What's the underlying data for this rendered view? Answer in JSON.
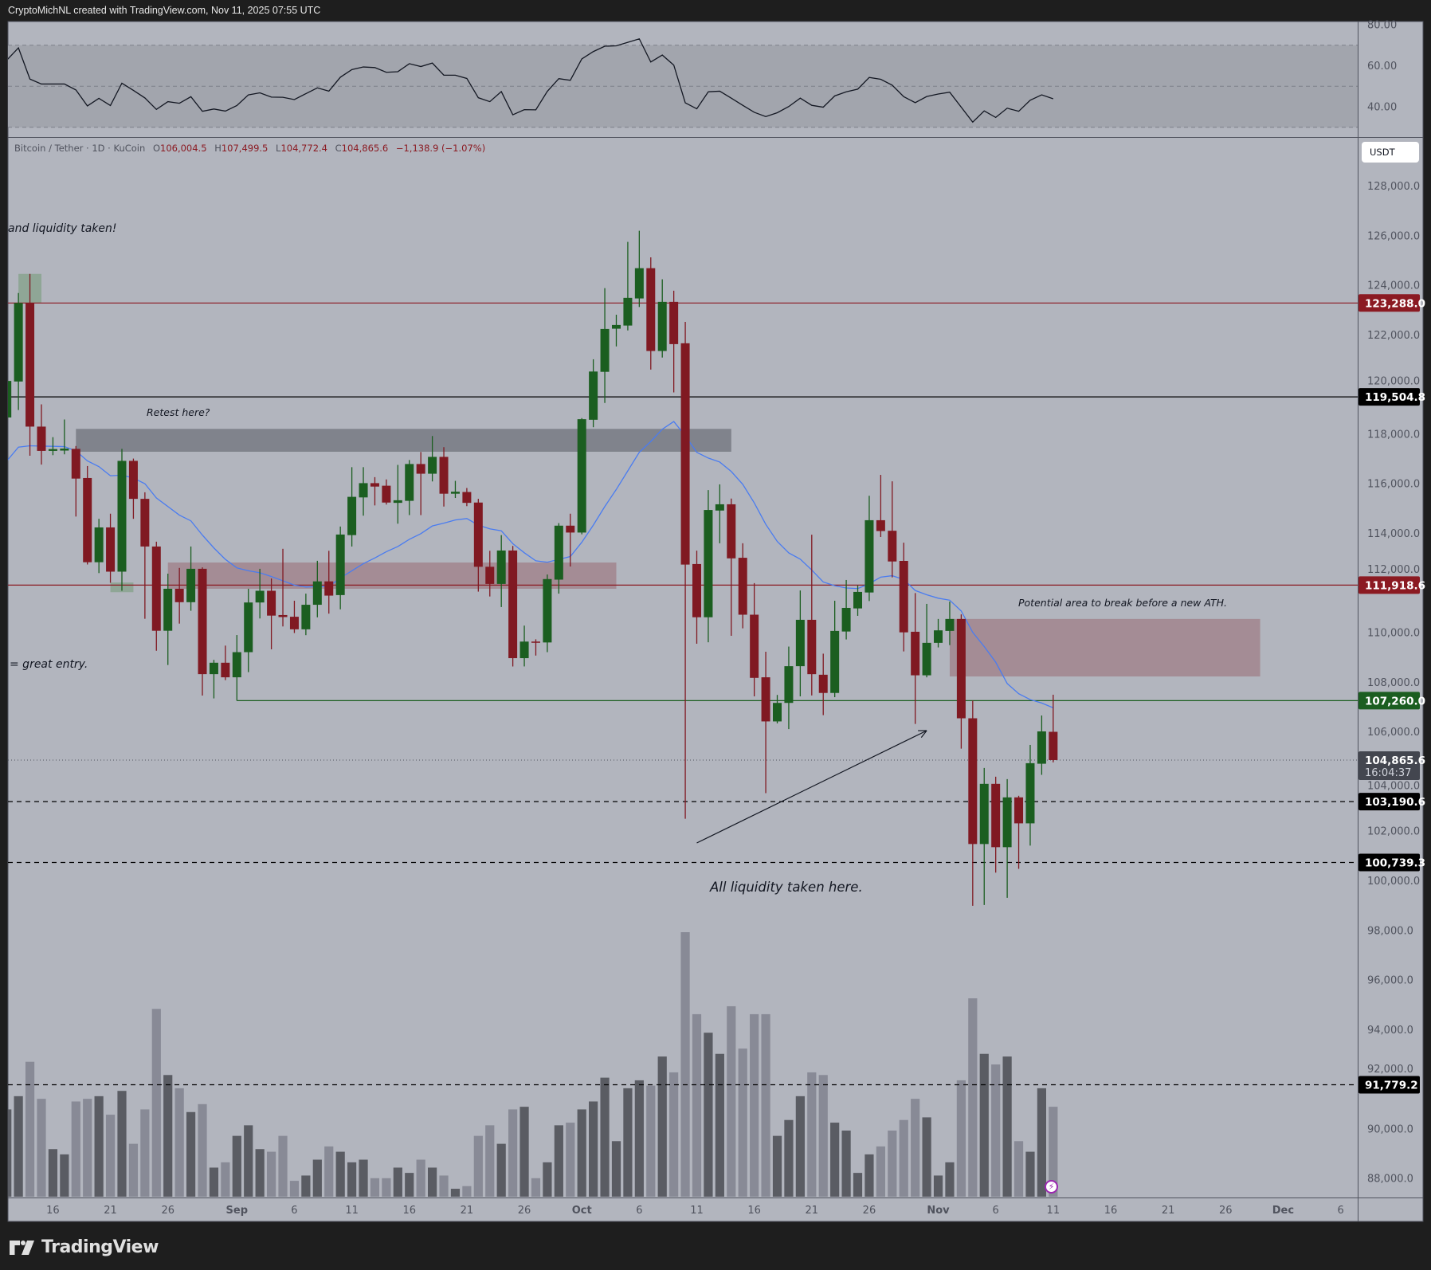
{
  "header": {
    "attribution": "CryptoMichNL created with TradingView.com, Nov 11, 2025 07:55 UTC"
  },
  "legend": {
    "symbol": "Bitcoin / Tether · 1D · KuCoin",
    "open_label": "O",
    "open": "106,004.5",
    "high_label": "H",
    "high": "107,499.5",
    "low_label": "L",
    "low": "104,772.4",
    "close_label": "C",
    "close": "104,865.6",
    "change": "−1,138.9 (−1.07%)"
  },
  "currency_button": "USDT",
  "branding": "TradingView",
  "annotations": {
    "liquidity_taken_top": "and liquidity taken!",
    "retest": "Retest here?",
    "great_entry": "= great entry.",
    "potential_area": "Potential area to break before a new ATH.",
    "all_liquidity": "All liquidity taken here."
  },
  "colors": {
    "up": "#1b5e20",
    "down": "#801922",
    "ma": "#4a7cf0",
    "volume_up": "#5a5c63",
    "volume_down": "#888a96",
    "pane_bg": "#b2b5be",
    "line_red": "#8b1a22",
    "line_green": "#1b5e20"
  },
  "chart_data": {
    "type": "candlestick",
    "timeframe": "1D",
    "price_axis": {
      "ticks": [
        "128,000.0",
        "126,000.0",
        "124,000.0",
        "122,000.0",
        "120,000.0",
        "118,000.0",
        "116,000.0",
        "114,000.0",
        "112,000.0",
        "110,000.0",
        "108,000.0",
        "106,000.0",
        "104,000.0",
        "102,000.0",
        "100,000.0",
        "98,000.0",
        "96,000.0",
        "94,000.0",
        "92,000.0",
        "90,000.0",
        "88,000.0"
      ]
    },
    "rsi_axis": {
      "ticks": [
        "80.00",
        "60.00",
        "40.00"
      ],
      "band": [
        30,
        70
      ],
      "mid": 50
    },
    "time_axis": [
      {
        "label": "16",
        "date": "2025-08-16"
      },
      {
        "label": "21",
        "date": "2025-08-21"
      },
      {
        "label": "26",
        "date": "2025-08-26"
      },
      {
        "label": "Sep",
        "date": "2025-09-01",
        "bold": true
      },
      {
        "label": "6",
        "date": "2025-09-06"
      },
      {
        "label": "11",
        "date": "2025-09-11"
      },
      {
        "label": "16",
        "date": "2025-09-16"
      },
      {
        "label": "21",
        "date": "2025-09-21"
      },
      {
        "label": "26",
        "date": "2025-09-26"
      },
      {
        "label": "Oct",
        "date": "2025-10-01",
        "bold": true
      },
      {
        "label": "6",
        "date": "2025-10-06"
      },
      {
        "label": "11",
        "date": "2025-10-11"
      },
      {
        "label": "16",
        "date": "2025-10-16"
      },
      {
        "label": "21",
        "date": "2025-10-21"
      },
      {
        "label": "26",
        "date": "2025-10-26"
      },
      {
        "label": "Nov",
        "date": "2025-11-01",
        "bold": true
      },
      {
        "label": "6",
        "date": "2025-11-06"
      },
      {
        "label": "11",
        "date": "2025-11-11"
      },
      {
        "label": "16",
        "date": "2025-11-16"
      },
      {
        "label": "21",
        "date": "2025-11-21"
      },
      {
        "label": "26",
        "date": "2025-11-26"
      },
      {
        "label": "Dec",
        "date": "2025-12-01",
        "bold": true
      },
      {
        "label": "6",
        "date": "2025-12-06"
      }
    ],
    "columns": [
      "date",
      "open",
      "high",
      "low",
      "close",
      "volume_relative",
      "rsi",
      "ma"
    ],
    "candles": [
      [
        "2025-08-12",
        118674,
        120500,
        118300,
        120147,
        33,
        62.8,
        116925
      ],
      [
        "2025-08-13",
        120124,
        123690,
        118973,
        123288,
        38,
        68.7,
        117477
      ],
      [
        "2025-08-14",
        123288,
        124462,
        117132,
        118306,
        51,
        53.5,
        117534
      ],
      [
        "2025-08-15",
        118306,
        119203,
        116775,
        117327,
        37,
        51.1,
        117520
      ],
      [
        "2025-08-16",
        117327,
        117880,
        117155,
        117400,
        18,
        51.1,
        117511
      ],
      [
        "2025-08-17",
        117340,
        118593,
        117189,
        117420,
        16,
        51.1,
        117500
      ],
      [
        "2025-08-18",
        117408,
        117523,
        114681,
        116211,
        36,
        48.2,
        117327
      ],
      [
        "2025-08-19",
        116234,
        116717,
        112748,
        112840,
        37,
        40.4,
        116925
      ],
      [
        "2025-08-20",
        112840,
        114589,
        112402,
        114243,
        38,
        44.1,
        116694
      ],
      [
        "2025-08-21",
        114243,
        114796,
        112011,
        112460,
        31,
        40.6,
        116326
      ],
      [
        "2025-08-22",
        112460,
        117408,
        111689,
        116925,
        40,
        51.5,
        116349
      ],
      [
        "2025-08-23",
        116925,
        117017,
        114589,
        115394,
        20,
        48.0,
        116234
      ],
      [
        "2025-08-24",
        115394,
        115659,
        110561,
        113473,
        33,
        44.3,
        116004
      ],
      [
        "2025-08-25",
        113473,
        113668,
        109272,
        110078,
        71,
        38.7,
        115429
      ],
      [
        "2025-08-26",
        110078,
        112379,
        108697,
        111770,
        46,
        42.5,
        115084
      ],
      [
        "2025-08-27",
        111770,
        112610,
        110366,
        111229,
        41,
        41.7,
        114738
      ],
      [
        "2025-08-28",
        111229,
        113473,
        110883,
        112575,
        32,
        44.9,
        114508
      ],
      [
        "2025-08-29",
        112575,
        112632,
        107466,
        108329,
        35,
        37.8,
        113933
      ],
      [
        "2025-08-30",
        108329,
        108904,
        107351,
        108789,
        11,
        38.9,
        113415
      ],
      [
        "2025-08-31",
        108789,
        109479,
        108087,
        108202,
        13,
        37.9,
        112955
      ],
      [
        "2025-09-01",
        108202,
        109905,
        107260,
        109215,
        23,
        40.6,
        112610
      ],
      [
        "2025-09-02",
        109215,
        111770,
        108410,
        111217,
        27,
        45.8,
        112495
      ],
      [
        "2025-09-03",
        111217,
        112575,
        110573,
        111689,
        18,
        46.8,
        112414
      ],
      [
        "2025-09-04",
        111689,
        112184,
        109330,
        110688,
        17,
        44.7,
        112264
      ],
      [
        "2025-09-05",
        110711,
        113381,
        110251,
        110630,
        23,
        44.6,
        112092
      ],
      [
        "2025-09-06",
        110642,
        111287,
        109986,
        110136,
        6,
        43.5,
        111919
      ],
      [
        "2025-09-07",
        110136,
        111574,
        109900,
        111125,
        8,
        46.4,
        111839
      ],
      [
        "2025-09-08",
        111125,
        112897,
        110619,
        112068,
        14,
        49.2,
        111862
      ],
      [
        "2025-09-09",
        112068,
        113300,
        110768,
        111494,
        19,
        47.6,
        111860
      ],
      [
        "2025-09-10",
        111516,
        114278,
        110941,
        113956,
        17,
        54.4,
        112207
      ],
      [
        "2025-09-11",
        113933,
        116671,
        113473,
        115475,
        13,
        58.1,
        112495
      ],
      [
        "2025-09-12",
        115452,
        116671,
        114716,
        116027,
        14,
        59.4,
        112782
      ],
      [
        "2025-09-13",
        116027,
        116269,
        115129,
        115889,
        7,
        59.1,
        113012
      ],
      [
        "2025-09-14",
        115924,
        116177,
        115164,
        115245,
        7,
        56.8,
        113265
      ],
      [
        "2025-09-15",
        115233,
        116763,
        114393,
        115337,
        11,
        57.1,
        113473
      ],
      [
        "2025-09-16",
        115314,
        116959,
        114739,
        116798,
        9,
        61.0,
        113761
      ],
      [
        "2025-09-17",
        116798,
        117282,
        114739,
        116407,
        14,
        59.6,
        113990
      ],
      [
        "2025-09-18",
        116407,
        117926,
        116096,
        117086,
        11,
        61.3,
        114301
      ],
      [
        "2025-09-19",
        117086,
        117477,
        115084,
        115601,
        8,
        55.4,
        114416
      ],
      [
        "2025-09-20",
        115601,
        116119,
        115429,
        115682,
        3,
        55.4,
        114543
      ],
      [
        "2025-09-21",
        115670,
        115831,
        115100,
        115233,
        4,
        53.8,
        114600
      ],
      [
        "2025-09-22",
        115245,
        115394,
        111655,
        112656,
        23,
        44.4,
        114335
      ],
      [
        "2025-09-23",
        112656,
        113300,
        111459,
        111965,
        27,
        42.5,
        114186
      ],
      [
        "2025-09-24",
        111965,
        113933,
        111033,
        113312,
        20,
        47.4,
        114106
      ],
      [
        "2025-09-25",
        113312,
        113496,
        108640,
        108973,
        33,
        36.1,
        113588
      ],
      [
        "2025-09-26",
        108973,
        110285,
        108640,
        109641,
        34,
        38.6,
        113220
      ],
      [
        "2025-09-27",
        109641,
        109733,
        109077,
        109606,
        7,
        38.5,
        112897
      ],
      [
        "2025-09-28",
        109606,
        112345,
        109215,
        112161,
        13,
        47.5,
        112840
      ],
      [
        "2025-09-29",
        112138,
        114416,
        111574,
        114313,
        27,
        53.7,
        112955
      ],
      [
        "2025-09-30",
        114313,
        114796,
        112667,
        114036,
        28,
        52.9,
        113070
      ],
      [
        "2025-10-01",
        114036,
        118650,
        113965,
        118605,
        33,
        63.3,
        113645
      ],
      [
        "2025-10-02",
        118582,
        121020,
        118281,
        120526,
        36,
        66.9,
        114335
      ],
      [
        "2025-10-03",
        120514,
        123887,
        119260,
        122241,
        45,
        69.5,
        115084
      ],
      [
        "2025-10-04",
        122252,
        122816,
        121538,
        122402,
        21,
        69.7,
        115774
      ],
      [
        "2025-10-05",
        122379,
        125751,
        122183,
        123495,
        41,
        71.4,
        116522
      ],
      [
        "2025-10-06",
        123472,
        126200,
        123127,
        124692,
        44,
        73.1,
        117270
      ],
      [
        "2025-10-07",
        124692,
        125130,
        120606,
        121354,
        42,
        61.8,
        117706
      ],
      [
        "2025-10-08",
        121354,
        124243,
        121090,
        123334,
        53,
        65.2,
        118201
      ],
      [
        "2025-10-09",
        123334,
        123783,
        119685,
        121631,
        47,
        60.3,
        118511
      ],
      [
        "2025-10-10",
        121665,
        122528,
        102500,
        112745,
        100,
        41.9,
        117936
      ],
      [
        "2025-10-11",
        112767,
        113306,
        109555,
        110622,
        69,
        39.0,
        117268
      ],
      [
        "2025-10-12",
        110622,
        115749,
        109613,
        114946,
        62,
        47.3,
        117038
      ],
      [
        "2025-10-13",
        114923,
        115978,
        113604,
        115175,
        54,
        47.6,
        116877
      ],
      [
        "2025-10-14",
        115175,
        115405,
        109876,
        112996,
        72,
        44.2,
        116497
      ],
      [
        "2025-10-15",
        113019,
        113604,
        110175,
        110725,
        56,
        40.7,
        115979
      ],
      [
        "2025-10-16",
        110725,
        111998,
        107433,
        108179,
        69,
        37.3,
        115231
      ],
      [
        "2025-10-17",
        108202,
        109234,
        103533,
        106424,
        69,
        35.2,
        114368
      ],
      [
        "2025-10-18",
        106424,
        107491,
        106344,
        107170,
        23,
        37.1,
        113677
      ],
      [
        "2025-10-19",
        107170,
        109440,
        106114,
        108650,
        29,
        40.1,
        113216
      ],
      [
        "2025-10-20",
        108650,
        111700,
        107433,
        110519,
        38,
        44.2,
        112963
      ],
      [
        "2025-10-21",
        110519,
        113948,
        107468,
        108328,
        47,
        40.7,
        112526
      ],
      [
        "2025-10-22",
        108305,
        109154,
        106676,
        107571,
        46,
        39.8,
        112043
      ],
      [
        "2025-10-23",
        107571,
        111287,
        107400,
        110071,
        28,
        45.3,
        111893
      ],
      [
        "2025-10-24",
        110047,
        112124,
        109727,
        110999,
        25,
        47.3,
        111801
      ],
      [
        "2025-10-25",
        110978,
        111907,
        110679,
        111643,
        9,
        48.6,
        111778
      ],
      [
        "2025-10-26",
        111620,
        115520,
        111276,
        114533,
        16,
        54.3,
        111974
      ],
      [
        "2025-10-27",
        114533,
        116360,
        113856,
        114097,
        19,
        53.4,
        112239
      ],
      [
        "2025-10-28",
        114108,
        116100,
        112228,
        112870,
        25,
        50.5,
        112296
      ],
      [
        "2025-10-29",
        112893,
        113627,
        109245,
        110014,
        29,
        44.9,
        112146
      ],
      [
        "2025-10-30",
        110037,
        111597,
        106321,
        108282,
        37,
        42.0,
        111700
      ],
      [
        "2025-10-31",
        108282,
        111161,
        108200,
        109590,
        30,
        45.0,
        111528
      ],
      [
        "2025-11-01",
        109590,
        110553,
        109406,
        110094,
        8,
        46.2,
        111390
      ],
      [
        "2025-11-02",
        110071,
        111253,
        109498,
        110553,
        13,
        47.1,
        111310
      ],
      [
        "2025-11-03",
        110553,
        110737,
        105327,
        106550,
        44,
        39.8,
        110874
      ],
      [
        "2025-11-04",
        106550,
        107260,
        98994,
        101482,
        75,
        32.5,
        110014
      ],
      [
        "2025-11-05",
        101482,
        104547,
        99026,
        103907,
        54,
        38.0,
        109440
      ],
      [
        "2025-11-06",
        103907,
        104195,
        100329,
        101354,
        50,
        34.8,
        108810
      ],
      [
        "2025-11-07",
        101354,
        104099,
        99314,
        103362,
        53,
        39.3,
        107950
      ],
      [
        "2025-11-08",
        103362,
        103426,
        100482,
        102315,
        21,
        37.8,
        107538
      ],
      [
        "2025-11-09",
        102315,
        105476,
        101418,
        104740,
        17,
        43.2,
        107303
      ],
      [
        "2025-11-10",
        104718,
        106662,
        104270,
        106021,
        41,
        45.8,
        107164
      ],
      [
        "2025-11-11",
        106004.5,
        107499.5,
        104772.4,
        104865.6,
        34,
        43.9,
        106972
      ]
    ],
    "horizontal_lines": [
      {
        "price": 123288.0,
        "label": "123,288.0",
        "color": "#8b1a22",
        "style": "solid"
      },
      {
        "price": 119504.8,
        "label": "119,504.8",
        "color": "#000000",
        "style": "solid"
      },
      {
        "price": 111918.6,
        "label": "111,918.6",
        "color": "#8b1a22",
        "style": "solid"
      },
      {
        "price": 107260.0,
        "label": "107,260.0",
        "color": "#1b5e20",
        "style": "solid",
        "from": "2025-09-01"
      },
      {
        "price": 103190.6,
        "label": "103,190.6",
        "color": "#000000",
        "style": "dashed"
      },
      {
        "price": 100739.3,
        "label": "100,739.3",
        "color": "#000000",
        "style": "dashed"
      },
      {
        "price": 91779.2,
        "label": "91,779.2",
        "color": "#000000",
        "style": "dashed"
      }
    ],
    "current_price": {
      "price": 104865.6,
      "label": "104,865.6",
      "countdown": "16:04:37"
    },
    "zones": [
      {
        "name": "retest-zone",
        "from": "2025-08-18",
        "to": "2025-10-14",
        "top": 118214,
        "bottom": 117293,
        "color": "#80838c"
      },
      {
        "name": "support-zone",
        "from": "2025-08-26",
        "to": "2025-10-04",
        "top": 112828,
        "bottom": 111769,
        "color": "#a48c95"
      },
      {
        "name": "ath-break-zone",
        "from": "2025-11-02",
        "to": "2025-11-29",
        "top": 110553,
        "bottom": 108236,
        "color": "#a48c95"
      },
      {
        "name": "highlight-box-top",
        "from": "2025-08-13",
        "to": "2025-08-15",
        "top": 124462,
        "bottom": 123288,
        "color": "#8fa696"
      },
      {
        "name": "highlight-box-bottom",
        "from": "2025-08-21",
        "to": "2025-08-23",
        "top": 112023,
        "bottom": 111632,
        "color": "#8fa696"
      }
    ],
    "arrow": {
      "from": {
        "date": "2025-10-11",
        "price": 101525
      },
      "to": {
        "date": "2025-10-31",
        "price": 106053
      }
    }
  }
}
